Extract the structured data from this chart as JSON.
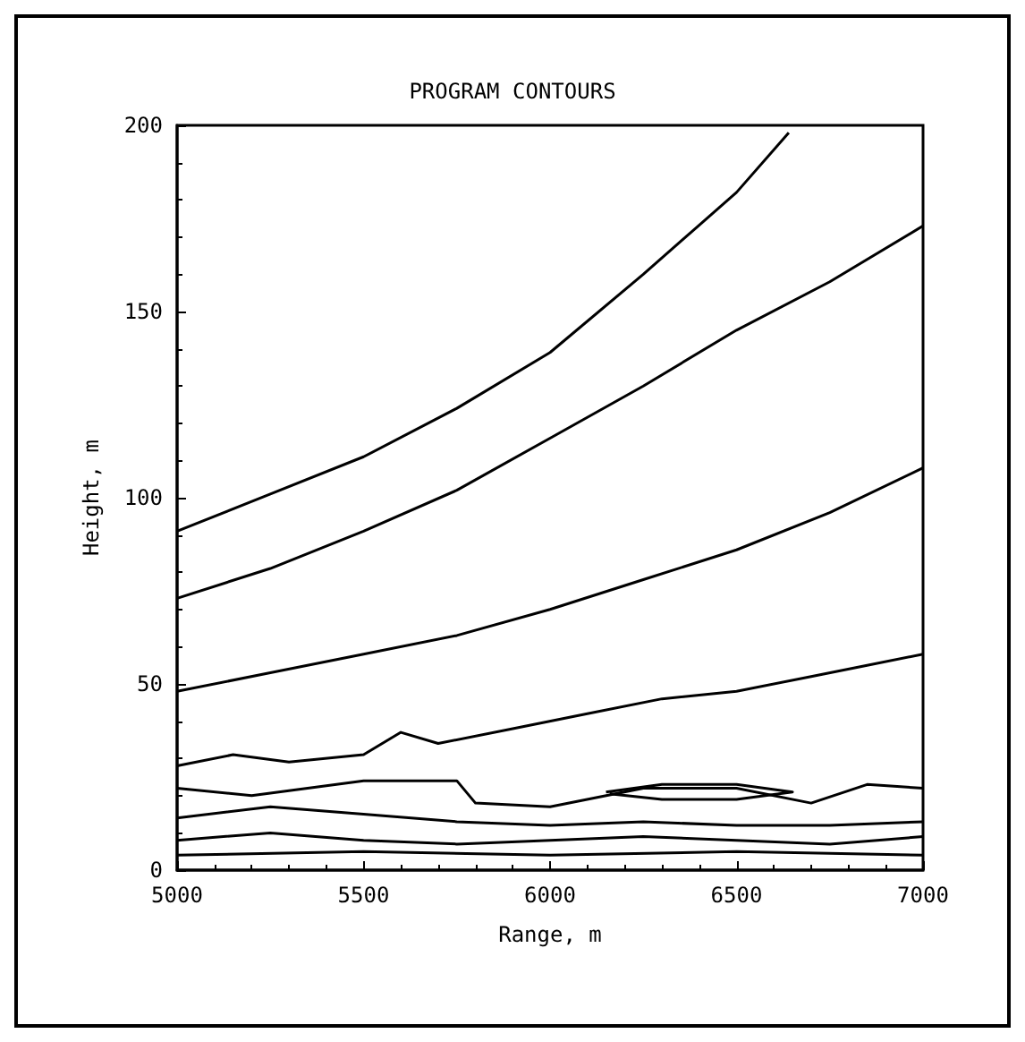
{
  "chart_data": {
    "type": "line",
    "title": "PROGRAM CONTOURS",
    "xlabel": "Range, m",
    "ylabel": "Height, m",
    "xlim": [
      5000,
      7000
    ],
    "xticks": [
      5000,
      5500,
      6000,
      6500,
      7000
    ],
    "ylim": [
      0,
      200
    ],
    "yticks": [
      0,
      50,
      100,
      150,
      200
    ],
    "series": [
      {
        "color": "#000000",
        "x": [
          5000,
          5250,
          5500,
          5750,
          6000,
          6250,
          6500,
          6640
        ],
        "values": [
          91,
          101,
          111,
          124,
          139,
          160,
          182,
          198
        ]
      },
      {
        "color": "#000000",
        "x": [
          5000,
          5250,
          5500,
          5750,
          6000,
          6250,
          6500,
          6750,
          7000
        ],
        "values": [
          73,
          81,
          91,
          102,
          116,
          130,
          145,
          158,
          173
        ]
      },
      {
        "color": "#000000",
        "x": [
          5000,
          5250,
          5500,
          5750,
          6000,
          6250,
          6500,
          6750,
          7000
        ],
        "values": [
          48,
          53,
          58,
          63,
          70,
          78,
          86,
          96,
          108
        ]
      },
      {
        "color": "#000000",
        "x": [
          5000,
          5150,
          5300,
          5500,
          5600,
          5700,
          5900,
          6100,
          6300,
          6500,
          6700,
          6850,
          7000
        ],
        "values": [
          28,
          31,
          29,
          31,
          37,
          34,
          38,
          42,
          46,
          48,
          52,
          55,
          58
        ]
      },
      {
        "color": "#000000",
        "x": [
          5000,
          5200,
          5500,
          5750,
          5800,
          6000,
          6250,
          6500,
          6700,
          6850,
          7000
        ],
        "values": [
          22,
          20,
          24,
          24,
          18,
          17,
          22,
          22,
          18,
          23,
          22
        ]
      },
      {
        "color": "#000000",
        "x": [
          5000,
          5250,
          5500,
          5750,
          6000,
          6250,
          6500,
          6750,
          7000
        ],
        "values": [
          14,
          17,
          15,
          13,
          12,
          13,
          12,
          12,
          13
        ]
      },
      {
        "color": "#000000",
        "x": [
          5000,
          5250,
          5500,
          5750,
          6000,
          6250,
          6500,
          6750,
          7000
        ],
        "values": [
          8,
          10,
          8,
          7,
          8,
          9,
          8,
          7,
          9
        ]
      },
      {
        "color": "#000000",
        "x": [
          5000,
          5500,
          6000,
          6500,
          7000
        ],
        "values": [
          4,
          5,
          4,
          5,
          4
        ]
      },
      {
        "color": "#000000",
        "x": [
          6150,
          6300,
          6500,
          6650,
          6500,
          6300,
          6160
        ],
        "values": [
          21,
          23,
          23,
          21,
          19,
          19,
          20.5
        ]
      }
    ]
  }
}
